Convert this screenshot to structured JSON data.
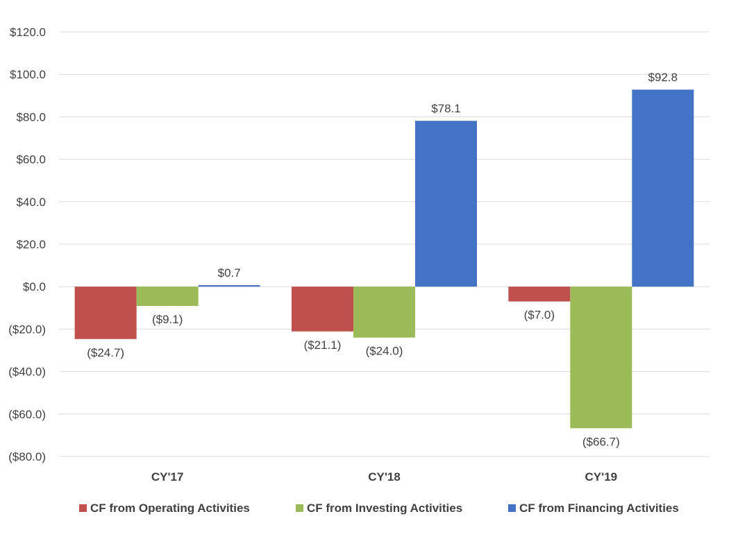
{
  "chart_data": {
    "type": "bar",
    "categories": [
      "CY'17",
      "CY'18",
      "CY'19"
    ],
    "series": [
      {
        "name": "CF from Operating Activities",
        "values": [
          -24.7,
          -21.1,
          -7.0
        ],
        "labels": [
          "($24.7)",
          "($21.1)",
          "($7.0)"
        ],
        "color": "#C0504D"
      },
      {
        "name": "CF from Investing Activities",
        "values": [
          -9.1,
          -24.0,
          -66.7
        ],
        "labels": [
          "($9.1)",
          "($24.0)",
          "($66.7)"
        ],
        "color": "#9BBB59"
      },
      {
        "name": "CF from Financing Activities",
        "values": [
          0.7,
          78.1,
          92.8
        ],
        "labels": [
          "$0.7",
          "$78.1",
          "$92.8"
        ],
        "color": "#4472C4"
      }
    ],
    "ylim": [
      -80,
      120
    ],
    "yticks": [
      120,
      100,
      80,
      60,
      40,
      20,
      0,
      -20,
      -40,
      -60,
      -80
    ],
    "ytick_labels": [
      "$120.0",
      "$100.0",
      "$80.0",
      "$60.0",
      "$40.0",
      "$20.0",
      "$0.0",
      "($20.0)",
      "($40.0)",
      "($60.0)",
      "($80.0)"
    ],
    "grid": true,
    "legend": "bottom",
    "title": "",
    "xlabel": "",
    "ylabel": ""
  }
}
